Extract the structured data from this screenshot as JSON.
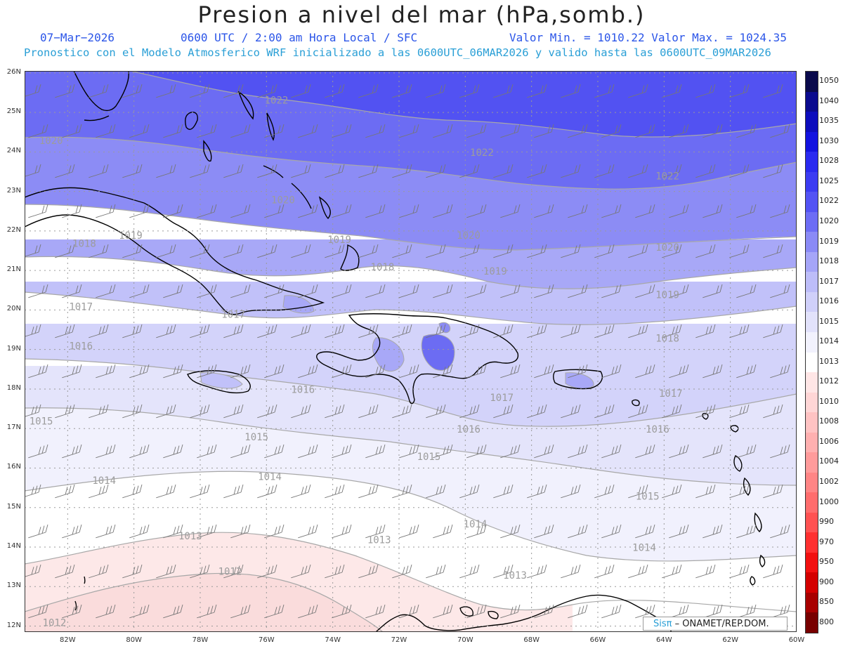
{
  "title": "Presion a nivel del mar (hPa,somb.)",
  "subtitle_left": "07−Mar−2026",
  "subtitle_center": "0600 UTC / 2:00 am Hora Local / SFC",
  "subtitle_right": "Valor Min. = 1010.22  Valor Max. = 1024.35",
  "subtitle2": "Pronostico con el Modelo Atmosferico WRF inicializado a las 0600UTC_06MAR2026 y valido hasta las  0600UTC_09MAR2026",
  "lat_labels": [
    "26N",
    "25N",
    "24N",
    "23N",
    "22N",
    "21N",
    "20N",
    "19N",
    "18N",
    "17N",
    "16N",
    "15N",
    "14N",
    "13N",
    "12N"
  ],
  "lon_labels": [
    "82W",
    "80W",
    "78W",
    "76W",
    "74W",
    "72W",
    "70W",
    "68W",
    "66W",
    "64W",
    "62W",
    "60W"
  ],
  "colorbar": {
    "labels": [
      "1050",
      "1040",
      "1035",
      "1030",
      "1028",
      "1025",
      "1022",
      "1020",
      "1019",
      "1018",
      "1017",
      "1016",
      "1015",
      "1014",
      "1013",
      "1012",
      "1010",
      "1008",
      "1006",
      "1004",
      "1002",
      "1000",
      "990",
      "970",
      "950",
      "900",
      "850",
      "800"
    ],
    "colors": [
      "#0a0a4c",
      "#0b0b8f",
      "#0d0dbd",
      "#1313e0",
      "#2a2af0",
      "#3c3cf2",
      "#5353f4",
      "#6d6df5",
      "#8a8af6",
      "#a5a5f8",
      "#bdbdf9",
      "#d0d0fa",
      "#e2e2fb",
      "#f2f2fd",
      "#ffffff",
      "#ffe6e6",
      "#ffd6d6",
      "#ffc3c3",
      "#ffb0b0",
      "#ff9b9b",
      "#ff8585",
      "#ff6d6d",
      "#ff5252",
      "#ff3030",
      "#f21010",
      "#d40000",
      "#a80000",
      "#780000"
    ]
  },
  "contour_labels": [
    {
      "text": "1022",
      "x": -75.7,
      "y": 25.22
    },
    {
      "text": "1022",
      "x": -69.5,
      "y": 23.9
    },
    {
      "text": "1022",
      "x": -63.9,
      "y": 23.3
    },
    {
      "text": "1020",
      "x": -82.5,
      "y": 24.2
    },
    {
      "text": "1020",
      "x": -75.5,
      "y": 22.7
    },
    {
      "text": "1020",
      "x": -69.9,
      "y": 21.8
    },
    {
      "text": "1020",
      "x": -63.9,
      "y": 21.5
    },
    {
      "text": "1019",
      "x": -80.1,
      "y": 21.8
    },
    {
      "text": "1019",
      "x": -73.8,
      "y": 21.7
    },
    {
      "text": "1019",
      "x": -69.1,
      "y": 20.9
    },
    {
      "text": "1019",
      "x": -63.9,
      "y": 20.3
    },
    {
      "text": "1018",
      "x": -81.5,
      "y": 21.6
    },
    {
      "text": "1018",
      "x": -72.5,
      "y": 21.0
    },
    {
      "text": "1018",
      "x": -63.9,
      "y": 19.2
    },
    {
      "text": "1017",
      "x": -81.6,
      "y": 20.0
    },
    {
      "text": "1017",
      "x": -77.0,
      "y": 19.8
    },
    {
      "text": "1017",
      "x": -68.9,
      "y": 17.7
    },
    {
      "text": "1017",
      "x": -63.8,
      "y": 17.8
    },
    {
      "text": "1016",
      "x": -81.6,
      "y": 19.0
    },
    {
      "text": "1016",
      "x": -74.9,
      "y": 17.9
    },
    {
      "text": "1016",
      "x": -69.9,
      "y": 16.9
    },
    {
      "text": "1016",
      "x": -64.2,
      "y": 16.9
    },
    {
      "text": "1015",
      "x": -82.8,
      "y": 17.1
    },
    {
      "text": "1015",
      "x": -76.3,
      "y": 16.7
    },
    {
      "text": "1015",
      "x": -71.1,
      "y": 16.2
    },
    {
      "text": "1015",
      "x": -64.5,
      "y": 15.2
    },
    {
      "text": "1014",
      "x": -80.9,
      "y": 15.6
    },
    {
      "text": "1014",
      "x": -75.9,
      "y": 15.7
    },
    {
      "text": "1014",
      "x": -69.7,
      "y": 14.5
    },
    {
      "text": "1014",
      "x": -64.6,
      "y": 13.9
    },
    {
      "text": "1013",
      "x": -78.3,
      "y": 14.2
    },
    {
      "text": "1013",
      "x": -72.6,
      "y": 14.1
    },
    {
      "text": "1013",
      "x": -68.5,
      "y": 13.2
    },
    {
      "text": "1012",
      "x": -77.1,
      "y": 13.3
    },
    {
      "text": "1012",
      "x": -82.4,
      "y": 12.0
    }
  ],
  "credit_brand": "Sisπ",
  "credit_text": " –  ONAMET/REP.DOM."
}
